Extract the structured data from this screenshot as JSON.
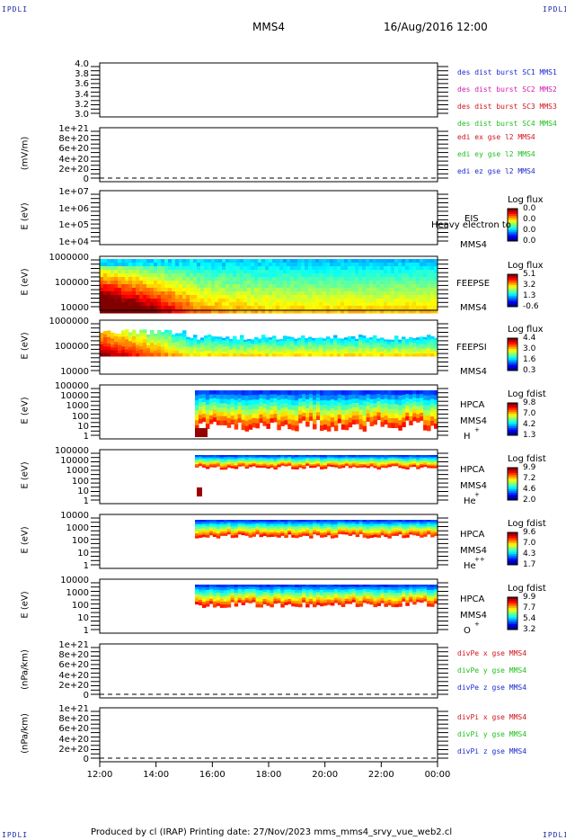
{
  "corners": {
    "tl": "IPDLI",
    "tr": "IPDLI",
    "bl": "IPDLI",
    "br": "IPDLI"
  },
  "header": {
    "title": "MMS4",
    "datetime": "16/Aug/2016 12:00"
  },
  "footer": {
    "text": "Produced by cl (IRAP)   Printing date: 27/Nov/2023   mms_mms4_srvy_vue_web2.cl"
  },
  "chart_data": {
    "type": "spectrogram-stack",
    "x_ticks": [
      "12:00",
      "14:00",
      "16:00",
      "18:00",
      "20:00",
      "22:00",
      "00:00"
    ],
    "panels": [
      {
        "id": "des",
        "ylabel": "",
        "yticks": [
          "4.0",
          "3.8",
          "3.6",
          "3.4",
          "3.2",
          "3.0"
        ],
        "legend": [
          {
            "text": "des dist burst SC1 MMS1",
            "color": "#1c2ad0"
          },
          {
            "text": "des dist burst SC2 MMS2",
            "color": "#d01cb0"
          },
          {
            "text": "des dist burst SC3 MMS3",
            "color": "#d0141c"
          },
          {
            "text": "des dist burst SC4 MMS4",
            "color": "#20c020"
          }
        ]
      },
      {
        "id": "edi",
        "ylabel": "(mV/m)",
        "yticks": [
          "1e+21",
          "8e+20",
          "6e+20",
          "4e+20",
          "2e+20",
          "0"
        ],
        "legend": [
          {
            "text": "edi ex gse l2 MMS4",
            "color": "#d0141c"
          },
          {
            "text": "edi ey gse l2 MMS4",
            "color": "#20c020"
          },
          {
            "text": "edi ez gse l2 MMS4",
            "color": "#1c2ad0"
          }
        ]
      },
      {
        "id": "eis",
        "ylabel": "E (eV)",
        "yticks": [
          "1e+07",
          "1e+06",
          "1e+05",
          "1e+04"
        ],
        "labels": [
          "EIS",
          "Heavy electron to",
          "MMS4"
        ],
        "cbtitle": "Log flux",
        "cbvals": [
          "0.0",
          "0.0",
          "0.0",
          "0.0"
        ]
      },
      {
        "id": "feepse",
        "ylabel": "E (eV)",
        "yticks": [
          "1000000",
          "100000",
          "10000"
        ],
        "labels": [
          "FEEPSE",
          "MMS4"
        ],
        "cbtitle": "Log flux",
        "cbvals": [
          "5.1",
          "3.2",
          "1.3",
          "-0.6"
        ]
      },
      {
        "id": "feepsi",
        "ylabel": "E (eV)",
        "yticks": [
          "1000000",
          "100000",
          "10000"
        ],
        "labels": [
          "FEEPSI",
          "MMS4"
        ],
        "cbtitle": "Log flux",
        "cbvals": [
          "4.4",
          "3.0",
          "1.6",
          "0.3"
        ]
      },
      {
        "id": "hpca_h",
        "ylabel": "E (eV)",
        "yticks": [
          "100000",
          "10000",
          "1000",
          "100",
          "10",
          "1"
        ],
        "labels": [
          "HPCA",
          "MMS4",
          "H",
          "+"
        ],
        "cbtitle": "Log fdist",
        "cbvals": [
          "9.8",
          "7.0",
          "4.2",
          "1.3"
        ]
      },
      {
        "id": "hpca_he",
        "ylabel": "E (eV)",
        "yticks": [
          "100000",
          "10000",
          "1000",
          "100",
          "10",
          "1"
        ],
        "labels": [
          "HPCA",
          "MMS4",
          "He",
          "+"
        ],
        "cbtitle": "Log fdist",
        "cbvals": [
          "9.9",
          "7.2",
          "4.6",
          "2.0"
        ]
      },
      {
        "id": "hpca_hepp",
        "ylabel": "E (eV)",
        "yticks": [
          "10000",
          "1000",
          "100",
          "10",
          "1"
        ],
        "labels": [
          "HPCA",
          "MMS4",
          "He",
          "++"
        ],
        "cbtitle": "Log fdist",
        "cbvals": [
          "9.6",
          "7.0",
          "4.3",
          "1.7"
        ]
      },
      {
        "id": "hpca_o",
        "ylabel": "E (eV)",
        "yticks": [
          "10000",
          "1000",
          "100",
          "10",
          "1"
        ],
        "labels": [
          "HPCA",
          "MMS4",
          "O",
          "+"
        ],
        "cbtitle": "Log fdist",
        "cbvals": [
          "9.9",
          "7.7",
          "5.4",
          "3.2"
        ]
      },
      {
        "id": "divpe",
        "ylabel": "(nPa/km)",
        "yticks": [
          "1e+21",
          "8e+20",
          "6e+20",
          "4e+20",
          "2e+20",
          "0"
        ],
        "legend": [
          {
            "text": "divPe x gse MMS4",
            "color": "#d0141c"
          },
          {
            "text": "divPe y gse MMS4",
            "color": "#20c020"
          },
          {
            "text": "divPe z gse MMS4",
            "color": "#1c2ad0"
          }
        ]
      },
      {
        "id": "divpi",
        "ylabel": "(nPa/km)",
        "yticks": [
          "1e+21",
          "8e+20",
          "6e+20",
          "4e+20",
          "2e+20",
          "0"
        ],
        "legend": [
          {
            "text": "divPi x gse MMS4",
            "color": "#d0141c"
          },
          {
            "text": "divPi y gse MMS4",
            "color": "#20c020"
          },
          {
            "text": "divPi z gse MMS4",
            "color": "#1c2ad0"
          }
        ]
      }
    ]
  }
}
